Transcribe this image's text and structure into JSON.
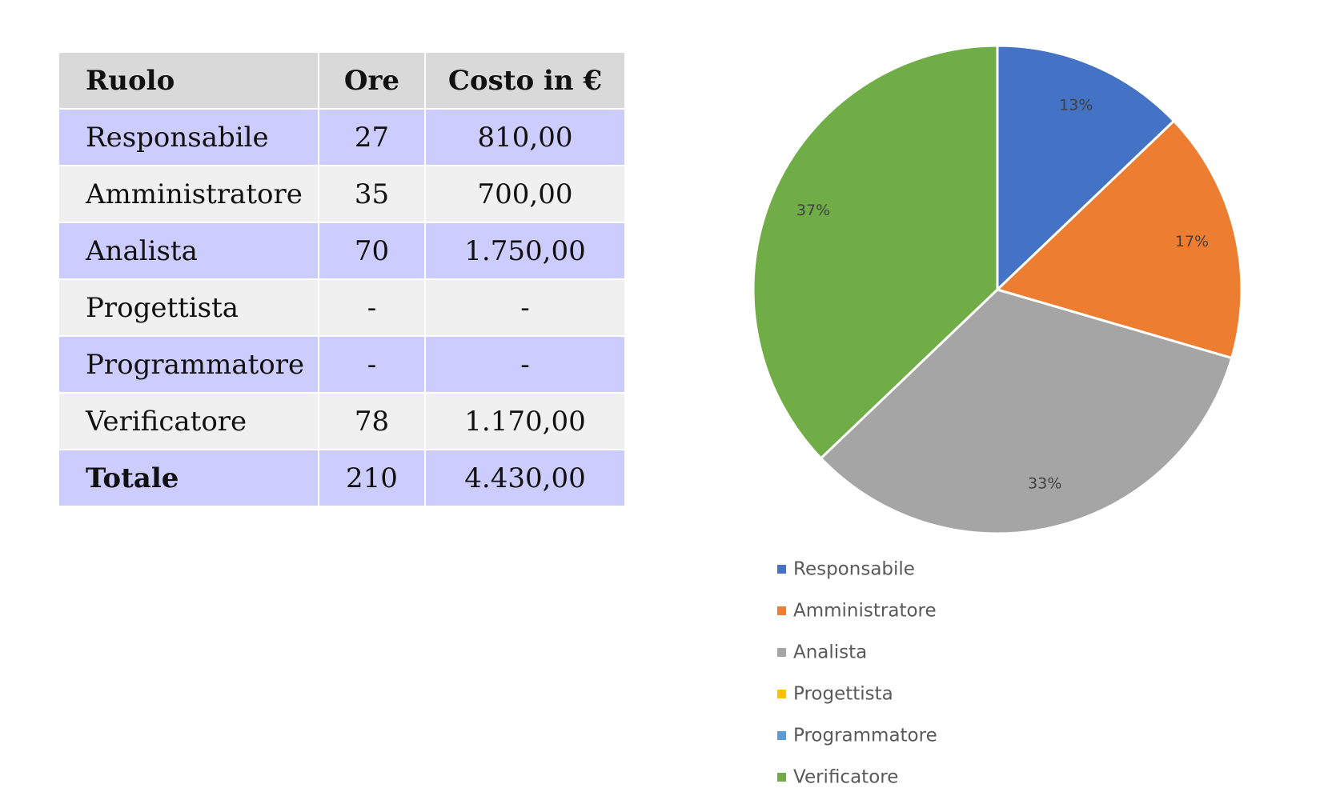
{
  "table": {
    "headers": {
      "role": "Ruolo",
      "hours": "Ore",
      "cost": "Costo in €"
    },
    "rows": [
      {
        "role": "Responsabile",
        "hours": "27",
        "cost": "810,00"
      },
      {
        "role": "Amministratore",
        "hours": "35",
        "cost": "700,00"
      },
      {
        "role": "Analista",
        "hours": "70",
        "cost": "1.750,00"
      },
      {
        "role": "Progettista",
        "hours": "-",
        "cost": "-"
      },
      {
        "role": "Programmatore",
        "hours": "-",
        "cost": "-"
      },
      {
        "role": "Verificatore",
        "hours": "78",
        "cost": "1.170,00"
      }
    ],
    "total": {
      "role": "Totale",
      "hours": "210",
      "cost": "4.430,00"
    },
    "colors": {
      "header": "#d9d9d9",
      "row_odd": "#ccccff",
      "row_even": "#f0f0f0"
    }
  },
  "chart_data": {
    "type": "pie",
    "title": "",
    "legend_position": "bottom-left",
    "slices": [
      {
        "name": "Responsabile",
        "value": 27,
        "label": "13%",
        "color": "#4472c4"
      },
      {
        "name": "Amministratore",
        "value": 35,
        "label": "17%",
        "color": "#ed7d31"
      },
      {
        "name": "Analista",
        "value": 70,
        "label": "33%",
        "color": "#a5a5a5"
      },
      {
        "name": "Progettista",
        "value": 0,
        "label": "",
        "color": "#ffc000"
      },
      {
        "name": "Programmatore",
        "value": 0,
        "label": "",
        "color": "#5b9bd5"
      },
      {
        "name": "Verificatore",
        "value": 78,
        "label": "37%",
        "color": "#70ad47"
      }
    ]
  }
}
